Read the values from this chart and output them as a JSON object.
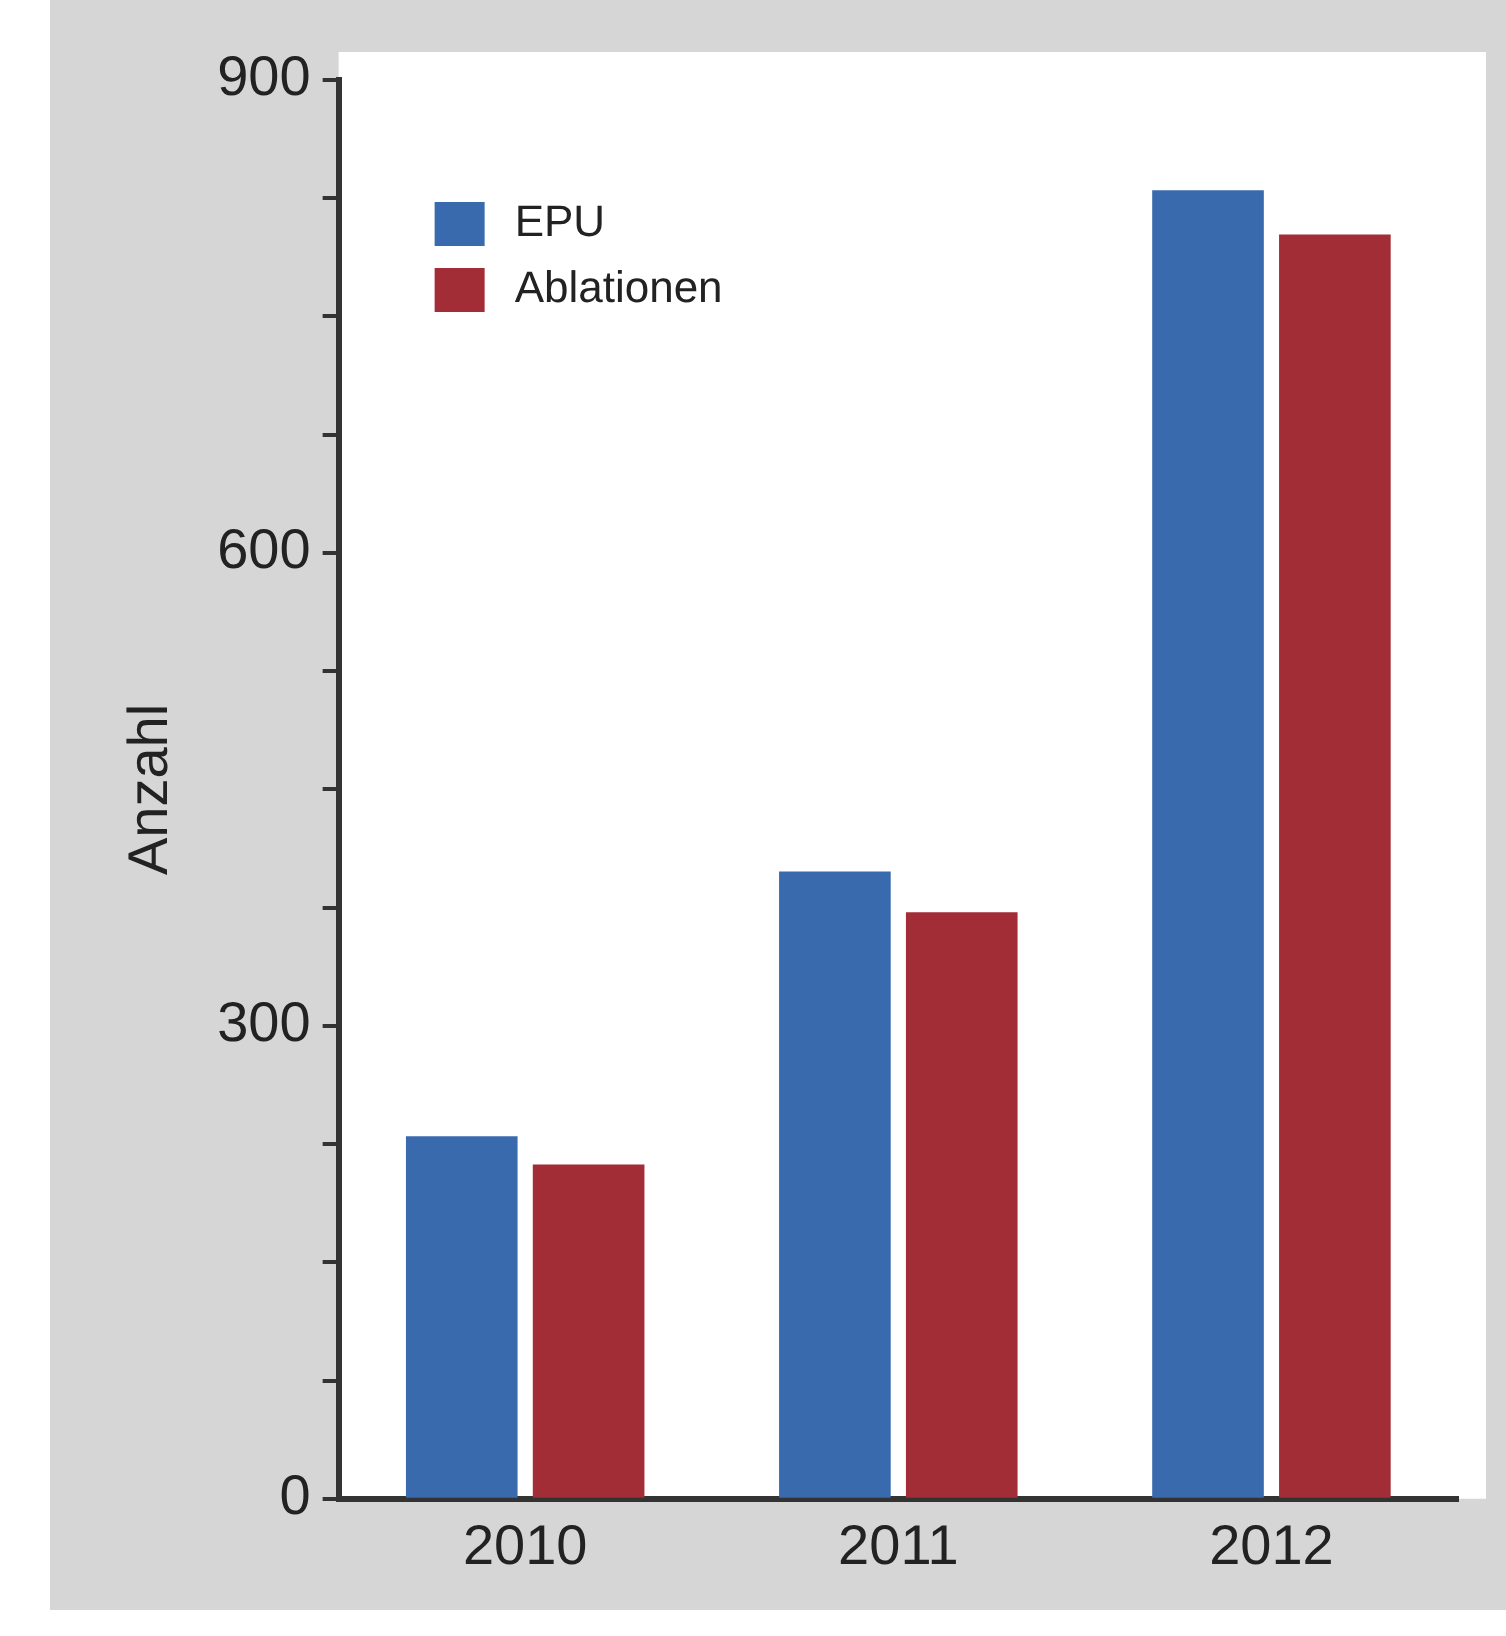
{
  "chart_data": {
    "type": "bar",
    "ylabel": "Anzahl",
    "categories": [
      "2010",
      "2011",
      "2012"
    ],
    "series": [
      {
        "name": "EPU",
        "color": "#3a6aae",
        "values": [
          230,
          398,
          830
        ]
      },
      {
        "name": "Ablationen",
        "color": "#a22d36",
        "values": [
          212,
          372,
          802
        ]
      }
    ],
    "ylim": [
      0,
      900
    ],
    "yticks": [
      0,
      {
        "value": 75,
        "label": null
      },
      {
        "value": 150,
        "label": null
      },
      {
        "value": 225,
        "label": null
      },
      300,
      {
        "value": 375,
        "label": null
      },
      {
        "value": 450,
        "label": null
      },
      {
        "value": 525,
        "label": null
      },
      600,
      {
        "value": 675,
        "label": null
      },
      {
        "value": 750,
        "label": null
      },
      {
        "value": 825,
        "label": null
      },
      900
    ],
    "grid": false,
    "legend": "top left"
  }
}
